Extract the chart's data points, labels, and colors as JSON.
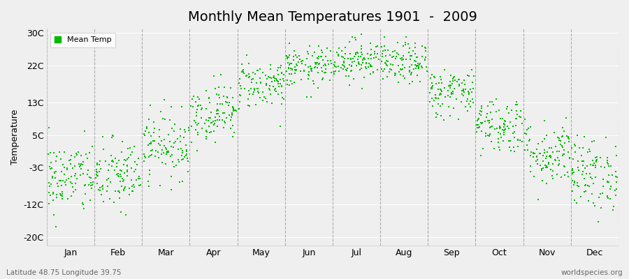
{
  "title": "Monthly Mean Temperatures 1901  -  2009",
  "ylabel": "Temperature",
  "subtitle_left": "Latitude 48.75 Longitude 39.75",
  "subtitle_right": "worldspecies.org",
  "legend_label": "Mean Temp",
  "dot_color": "#00bb00",
  "background_color": "#efefef",
  "yticks": [
    -20,
    -12,
    -3,
    5,
    13,
    22,
    30
  ],
  "ytick_labels": [
    "-20C",
    "-12C",
    "-3C",
    "5C",
    "13C",
    "22C",
    "30C"
  ],
  "ylim": [
    -22,
    31
  ],
  "months": [
    "Jan",
    "Feb",
    "Mar",
    "Apr",
    "May",
    "Jun",
    "Jul",
    "Aug",
    "Sep",
    "Oct",
    "Nov",
    "Dec"
  ],
  "monthly_mean_temps": [
    -5.5,
    -5.0,
    2.5,
    10.5,
    17.5,
    21.5,
    23.5,
    22.5,
    15.5,
    7.5,
    0.5,
    -4.5
  ],
  "monthly_std": [
    4.5,
    4.5,
    4.0,
    3.5,
    3.0,
    2.5,
    2.5,
    2.5,
    3.0,
    3.5,
    4.0,
    4.5
  ],
  "n_years": 109,
  "seed": 42,
  "dot_size": 3,
  "title_fontsize": 14,
  "axis_fontsize": 9,
  "ylabel_fontsize": 9
}
